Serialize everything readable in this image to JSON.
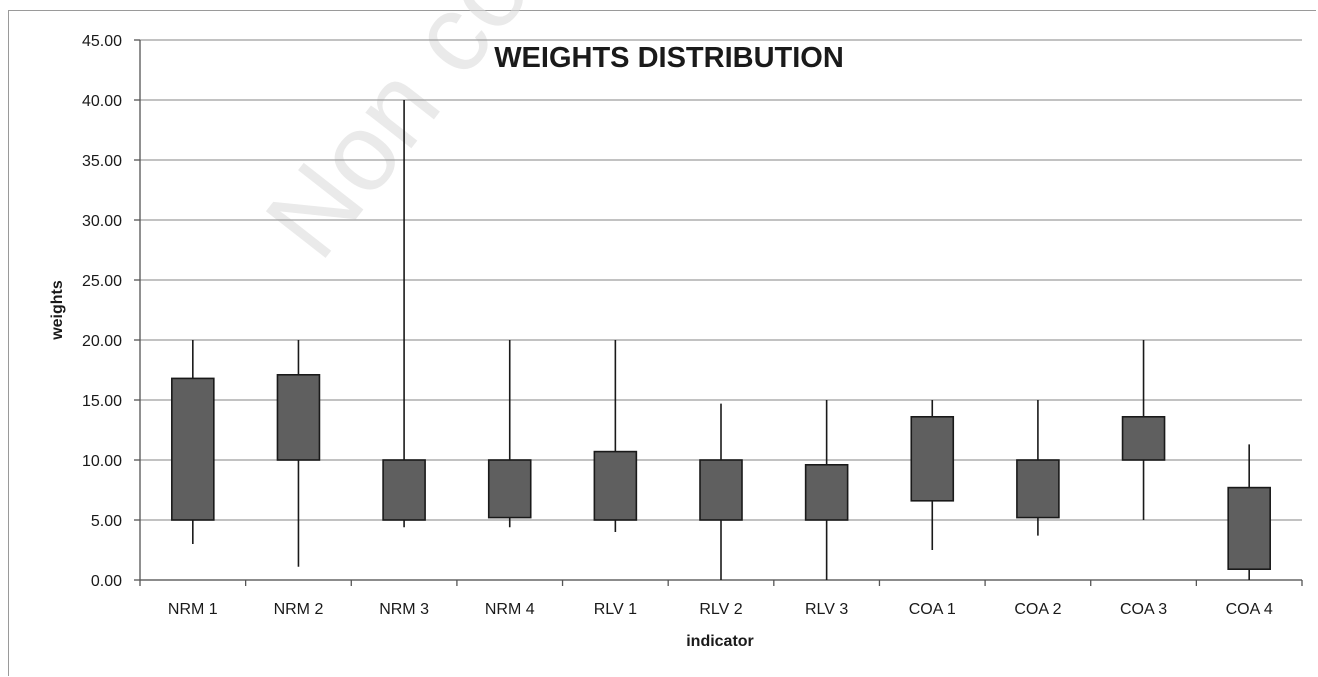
{
  "watermark": "Non com",
  "chart_data": {
    "type": "box",
    "title": "WEIGHTS DISTRIBUTION",
    "xlabel": "indicator",
    "ylabel": "weights",
    "ylim": [
      0,
      45
    ],
    "yticks": [
      "0.00",
      "5.00",
      "10.00",
      "15.00",
      "20.00",
      "25.00",
      "30.00",
      "35.00",
      "40.00",
      "45.00"
    ],
    "grid": true,
    "categories": [
      "NRM 1",
      "NRM 2",
      "NRM 3",
      "NRM 4",
      "RLV 1",
      "RLV 2",
      "RLV 3",
      "COA 1",
      "COA 2",
      "COA 3",
      "COA 4"
    ],
    "series": [
      {
        "min": 3.0,
        "q1": 5.0,
        "q3": 16.8,
        "max": 20.0
      },
      {
        "min": 1.1,
        "q1": 10.0,
        "q3": 17.1,
        "max": 20.0
      },
      {
        "min": 4.4,
        "q1": 5.0,
        "q3": 10.0,
        "max": 40.0
      },
      {
        "min": 4.4,
        "q1": 5.2,
        "q3": 10.0,
        "max": 20.0
      },
      {
        "min": 4.0,
        "q1": 5.0,
        "q3": 10.7,
        "max": 20.0
      },
      {
        "min": 0.0,
        "q1": 5.0,
        "q3": 10.0,
        "max": 14.7
      },
      {
        "min": 0.0,
        "q1": 5.0,
        "q3": 9.6,
        "max": 15.0
      },
      {
        "min": 2.5,
        "q1": 6.6,
        "q3": 13.6,
        "max": 15.0
      },
      {
        "min": 3.7,
        "q1": 5.2,
        "q3": 10.0,
        "max": 15.0
      },
      {
        "min": 5.0,
        "q1": 10.0,
        "q3": 13.6,
        "max": 20.0
      },
      {
        "min": 0.0,
        "q1": 0.9,
        "q3": 7.7,
        "max": 11.3
      }
    ],
    "colors": {
      "box": "#5f5f5f",
      "outline": "#1a1a1a",
      "grid": "#9e9e9e"
    }
  }
}
